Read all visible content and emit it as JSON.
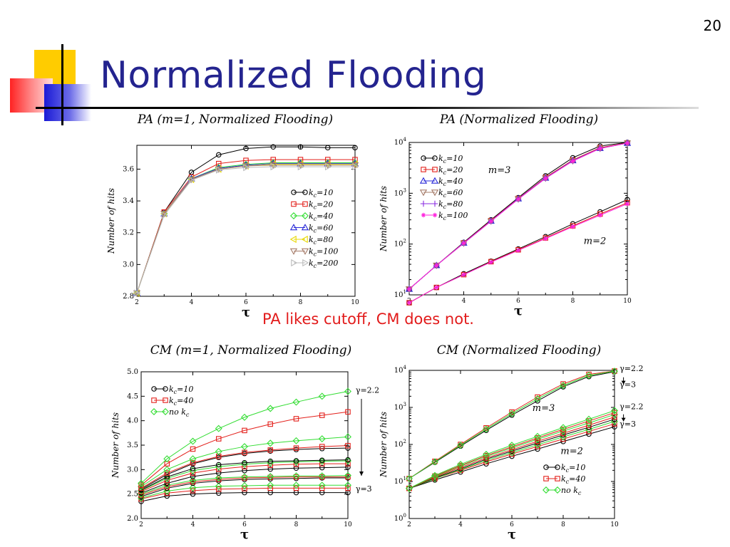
{
  "slide": {
    "number": "20",
    "title": "Normalized Flooding",
    "caption": "PA likes cutoff, CM does not."
  },
  "chart_data": [
    {
      "type": "line",
      "title": "PA (m=1, Normalized Flooding)",
      "xlabel": "τ",
      "ylabel": "Number of hits",
      "xlim": [
        2,
        10
      ],
      "ylim": [
        2.8,
        3.75
      ],
      "yscale": "linear",
      "xticks": [
        2,
        4,
        6,
        8,
        10
      ],
      "yticks": [
        2.8,
        3.0,
        3.2,
        3.4,
        3.6
      ],
      "ytick_labels": [
        "2.8",
        "3.0",
        "3.2",
        "3.4",
        "3.6"
      ],
      "x": [
        2,
        3,
        4,
        5,
        6,
        7,
        8,
        9,
        10
      ],
      "legend_position": "center-right",
      "series": [
        {
          "name": "k_c=10",
          "label_base": "k",
          "label_sub": "c",
          "label_rest": "=10",
          "color": "#000000",
          "marker": "circle",
          "values": [
            2.82,
            3.33,
            3.58,
            3.69,
            3.73,
            3.74,
            3.74,
            3.735,
            3.735
          ]
        },
        {
          "name": "k_c=20",
          "label_base": "k",
          "label_sub": "c",
          "label_rest": "=20",
          "color": "#e3201b",
          "marker": "square",
          "values": [
            2.82,
            3.33,
            3.55,
            3.635,
            3.655,
            3.66,
            3.66,
            3.66,
            3.66
          ]
        },
        {
          "name": "k_c=40",
          "label_base": "k",
          "label_sub": "c",
          "label_rest": "=40",
          "color": "#33dd33",
          "marker": "diamond",
          "values": [
            2.82,
            3.32,
            3.54,
            3.61,
            3.63,
            3.64,
            3.64,
            3.64,
            3.64
          ]
        },
        {
          "name": "k_c=60",
          "label_base": "k",
          "label_sub": "c",
          "label_rest": "=60",
          "color": "#2a2ad8",
          "marker": "triangle-up",
          "values": [
            2.82,
            3.32,
            3.54,
            3.605,
            3.625,
            3.635,
            3.635,
            3.635,
            3.635
          ]
        },
        {
          "name": "k_c=80",
          "label_base": "k",
          "label_sub": "c",
          "label_rest": "=80",
          "color": "#e8d800",
          "marker": "triangle-left",
          "values": [
            2.82,
            3.32,
            3.535,
            3.6,
            3.62,
            3.63,
            3.63,
            3.63,
            3.63
          ]
        },
        {
          "name": "k_c=100",
          "label_base": "k",
          "label_sub": "c",
          "label_rest": "=100",
          "color": "#a67c6a",
          "marker": "triangle-down",
          "values": [
            2.82,
            3.32,
            3.535,
            3.6,
            3.62,
            3.625,
            3.625,
            3.625,
            3.625
          ]
        },
        {
          "name": "k_c=200",
          "label_base": "k",
          "label_sub": "c",
          "label_rest": "=200",
          "color": "#bbbbbb",
          "marker": "triangle-right",
          "values": [
            2.82,
            3.31,
            3.53,
            3.595,
            3.61,
            3.615,
            3.615,
            3.615,
            3.615
          ]
        }
      ],
      "annotations": []
    },
    {
      "type": "line",
      "title": "PA (Normalized Flooding)",
      "xlabel": "τ",
      "ylabel": "Number of hits",
      "xlim": [
        2,
        10
      ],
      "ylim": [
        10,
        10000
      ],
      "yscale": "log",
      "xticks": [
        2,
        4,
        6,
        8,
        10
      ],
      "yticks": [
        10,
        100,
        1000,
        10000
      ],
      "ytick_labels": [
        "10^1",
        "10^2",
        "10^3",
        "10^4"
      ],
      "x": [
        2,
        3,
        4,
        5,
        6,
        7,
        8,
        9,
        10
      ],
      "legend_position": "top-left",
      "series": [
        {
          "name": "k_c=10",
          "label_base": "k",
          "label_sub": "c",
          "label_rest": "=10",
          "color": "#000000",
          "marker": "circle",
          "group": "m=3",
          "values": [
            13,
            38,
            108,
            300,
            820,
            2200,
            5000,
            8500,
            10000
          ]
        },
        {
          "name": "k_c=20",
          "label_base": "k",
          "label_sub": "c",
          "label_rest": "=20",
          "color": "#e3201b",
          "marker": "square",
          "group": "m=3",
          "values": [
            13,
            38,
            106,
            290,
            790,
            2050,
            4500,
            7900,
            9800
          ]
        },
        {
          "name": "k_c=40",
          "label_base": "k",
          "label_sub": "c",
          "label_rest": "=40",
          "color": "#2a2ad8",
          "marker": "triangle-up",
          "group": "m=3",
          "values": [
            13,
            38,
            105,
            285,
            780,
            2000,
            4400,
            7700,
            9700
          ]
        },
        {
          "name": "k_c=60",
          "label_base": "k",
          "label_sub": "c",
          "label_rest": "=60",
          "color": "#a67c6a",
          "marker": "triangle-down",
          "group": "m=3",
          "values": [
            13,
            38,
            104,
            283,
            770,
            1980,
            4350,
            7650,
            9700
          ]
        },
        {
          "name": "k_c=80",
          "label_base": "k",
          "label_sub": "c",
          "label_rest": "=80",
          "color": "#8a2be2",
          "marker": "plus",
          "group": "m=3",
          "values": [
            13,
            38,
            104,
            282,
            768,
            1970,
            4320,
            7620,
            9700
          ]
        },
        {
          "name": "k_c=100",
          "label_base": "k",
          "label_sub": "c",
          "label_rest": "=100",
          "color": "#ff22dd",
          "marker": "star",
          "group": "m=3",
          "values": [
            13,
            38,
            104,
            281,
            765,
            1960,
            4300,
            7600,
            9700
          ]
        },
        {
          "name": "",
          "color": "#000000",
          "marker": "circle",
          "group": "m=2",
          "values": [
            7,
            14,
            26,
            46,
            80,
            140,
            250,
            430,
            750
          ]
        },
        {
          "name": "",
          "color": "#e3201b",
          "marker": "square",
          "group": "m=2",
          "values": [
            7,
            14,
            25,
            45,
            77,
            132,
            228,
            390,
            650
          ]
        },
        {
          "name": "",
          "color": "#ff22dd",
          "marker": "star",
          "group": "m=2",
          "values": [
            7,
            14,
            25,
            44,
            75,
            128,
            220,
            370,
            620
          ]
        }
      ],
      "annotations": [
        {
          "text": "m=3",
          "at": [
            4.9,
            2500
          ]
        },
        {
          "text": "m=2",
          "at": [
            8.4,
            100
          ]
        }
      ]
    },
    {
      "type": "line",
      "title": "CM (m=1, Normalized Flooding)",
      "xlabel": "τ",
      "ylabel": "Number of hits",
      "xlim": [
        2,
        10
      ],
      "ylim": [
        2.0,
        5.0
      ],
      "yscale": "linear",
      "xticks": [
        2,
        4,
        6,
        8,
        10
      ],
      "yticks": [
        2.0,
        2.5,
        3.0,
        3.5,
        4.0,
        4.5,
        5.0
      ],
      "ytick_labels": [
        "2.0",
        "2.5",
        "3.0",
        "3.5",
        "4.0",
        "4.5",
        "5.0"
      ],
      "x": [
        2,
        3,
        4,
        5,
        6,
        7,
        8,
        9,
        10
      ],
      "legend_position": "top-left",
      "series": [
        {
          "name": "k_c=10",
          "label_base": "k",
          "label_sub": "c",
          "label_rest": "=10",
          "color": "#000000",
          "marker": "circle",
          "values": [
            2.35,
            2.46,
            2.5,
            2.52,
            2.53,
            2.53,
            2.53,
            2.53,
            2.53
          ]
        },
        {
          "name": "k_c=40",
          "label_base": "k",
          "label_sub": "c",
          "label_rest": "=40",
          "color": "#e3201b",
          "marker": "square",
          "values": [
            2.4,
            2.52,
            2.57,
            2.6,
            2.61,
            2.62,
            2.62,
            2.62,
            2.62
          ]
        },
        {
          "name": "no k_c",
          "label_base": "no k",
          "label_sub": "c",
          "label_rest": "",
          "color": "#33dd33",
          "marker": "diamond",
          "values": [
            2.42,
            2.56,
            2.63,
            2.66,
            2.67,
            2.68,
            2.68,
            2.68,
            2.68
          ]
        },
        {
          "name": "",
          "color": "#000000",
          "marker": "circle",
          "values": [
            2.45,
            2.62,
            2.72,
            2.77,
            2.8,
            2.81,
            2.82,
            2.83,
            2.83
          ]
        },
        {
          "name": "",
          "color": "#e3201b",
          "marker": "square",
          "values": [
            2.48,
            2.65,
            2.75,
            2.8,
            2.83,
            2.84,
            2.85,
            2.85,
            2.85
          ]
        },
        {
          "name": "",
          "color": "#33dd33",
          "marker": "diamond",
          "values": [
            2.5,
            2.68,
            2.78,
            2.83,
            2.85,
            2.86,
            2.87,
            2.87,
            2.88
          ]
        },
        {
          "name": "",
          "color": "#000000",
          "marker": "circle",
          "values": [
            2.52,
            2.72,
            2.86,
            2.93,
            2.98,
            3.01,
            3.03,
            3.04,
            3.05
          ]
        },
        {
          "name": "",
          "color": "#e3201b",
          "marker": "square",
          "values": [
            2.55,
            2.78,
            2.93,
            3.01,
            3.06,
            3.09,
            3.11,
            3.12,
            3.12
          ]
        },
        {
          "name": "",
          "color": "#33dd33",
          "marker": "diamond",
          "values": [
            2.57,
            2.82,
            2.98,
            3.06,
            3.11,
            3.14,
            3.16,
            3.17,
            3.18
          ]
        },
        {
          "name": "",
          "color": "#000000",
          "marker": "circle",
          "values": [
            2.58,
            2.85,
            3.02,
            3.1,
            3.14,
            3.17,
            3.18,
            3.19,
            3.2
          ]
        },
        {
          "name": "",
          "color": "#000000",
          "marker": "circle",
          "values": [
            2.6,
            2.9,
            3.12,
            3.25,
            3.33,
            3.38,
            3.41,
            3.43,
            3.44
          ]
        },
        {
          "name": "",
          "color": "#e3201b",
          "marker": "square",
          "values": [
            2.62,
            2.93,
            3.14,
            3.27,
            3.35,
            3.4,
            3.44,
            3.47,
            3.49
          ]
        },
        {
          "name": "",
          "color": "#33dd33",
          "marker": "diamond",
          "values": [
            2.65,
            3.0,
            3.22,
            3.37,
            3.47,
            3.54,
            3.59,
            3.63,
            3.67
          ]
        },
        {
          "name": "",
          "color": "#e3201b",
          "marker": "square",
          "values": [
            2.68,
            3.12,
            3.42,
            3.63,
            3.8,
            3.93,
            4.04,
            4.11,
            4.18
          ]
        },
        {
          "name": "",
          "color": "#33dd33",
          "marker": "diamond",
          "values": [
            2.72,
            3.22,
            3.58,
            3.84,
            4.07,
            4.25,
            4.38,
            4.5,
            4.6
          ]
        }
      ],
      "annotations": [
        {
          "text": "γ=2.2",
          "at": [
            10.3,
            4.57
          ]
        },
        {
          "text": "γ=3",
          "at": [
            10.3,
            2.55
          ]
        }
      ]
    },
    {
      "type": "line",
      "title": "CM (Normalized Flooding)",
      "xlabel": "τ",
      "ylabel": "Number of hits",
      "xlim": [
        2,
        10
      ],
      "ylim": [
        1,
        10000
      ],
      "yscale": "log",
      "xticks": [
        2,
        4,
        6,
        8,
        10
      ],
      "yticks": [
        1,
        10,
        100,
        1000,
        10000
      ],
      "ytick_labels": [
        "10^0",
        "10^1",
        "10^2",
        "10^3",
        "10^4"
      ],
      "x": [
        2,
        3,
        4,
        5,
        6,
        7,
        8,
        9,
        10
      ],
      "legend_position": "bottom-right",
      "series": [
        {
          "name": "k_c=10",
          "label_base": "k",
          "label_sub": "c",
          "label_rest": "=10",
          "color": "#000000",
          "marker": "circle",
          "values": [
            12,
            33,
            90,
            240,
            620,
            1500,
            3600,
            6800,
            9200
          ]
        },
        {
          "name": "k_c=40",
          "label_base": "k",
          "label_sub": "c",
          "label_rest": "=40",
          "color": "#e3201b",
          "marker": "square",
          "values": [
            12,
            35,
            100,
            280,
            750,
            1900,
            4300,
            7800,
            9600
          ]
        },
        {
          "name": "no k_c",
          "label_base": "no k",
          "label_sub": "c",
          "label_rest": "",
          "color": "#33dd33",
          "marker": "diamond",
          "values": [
            12,
            34,
            95,
            260,
            680,
            1700,
            3900,
            7300,
            9500
          ]
        },
        {
          "name": "",
          "color": "#000000",
          "marker": "circle",
          "values": [
            6.5,
            11,
            18,
            30,
            48,
            75,
            120,
            190,
            300
          ]
        },
        {
          "name": "",
          "color": "#e3201b",
          "marker": "square",
          "values": [
            6.5,
            12,
            20,
            34,
            55,
            88,
            140,
            225,
            360
          ]
        },
        {
          "name": "",
          "color": "#33dd33",
          "marker": "diamond",
          "values": [
            6.5,
            12,
            21,
            37,
            60,
            98,
            160,
            255,
            420
          ]
        },
        {
          "name": "",
          "color": "#000000",
          "marker": "circle",
          "values": [
            6.5,
            12.5,
            22,
            40,
            66,
            110,
            180,
            290,
            480
          ]
        },
        {
          "name": "",
          "color": "#e3201b",
          "marker": "square",
          "values": [
            6.5,
            13,
            24,
            43,
            72,
            122,
            200,
            330,
            550
          ]
        },
        {
          "name": "",
          "color": "#33dd33",
          "marker": "diamond",
          "values": [
            6.5,
            13.5,
            26,
            47,
            80,
            138,
            230,
            380,
            640
          ]
        },
        {
          "name": "",
          "color": "#e3201b",
          "marker": "square",
          "values": [
            6.5,
            14,
            27,
            50,
            86,
            150,
            255,
            430,
            720
          ]
        },
        {
          "name": "",
          "color": "#33dd33",
          "marker": "diamond",
          "values": [
            6.5,
            14.5,
            29,
            54,
            95,
            165,
            285,
            480,
            820
          ]
        }
      ],
      "annotations": [
        {
          "text": "m=3",
          "at": [
            6.8,
            800
          ]
        },
        {
          "text": "m=2",
          "at": [
            7.9,
            55
          ]
        },
        {
          "text": "γ=2.2",
          "at": [
            10.2,
            9500
          ]
        },
        {
          "text": "γ=3",
          "at": [
            10.2,
            3500
          ]
        },
        {
          "text": "γ=2.2",
          "at": [
            10.2,
            900
          ]
        },
        {
          "text": "γ=3",
          "at": [
            10.2,
            300
          ]
        }
      ]
    }
  ]
}
